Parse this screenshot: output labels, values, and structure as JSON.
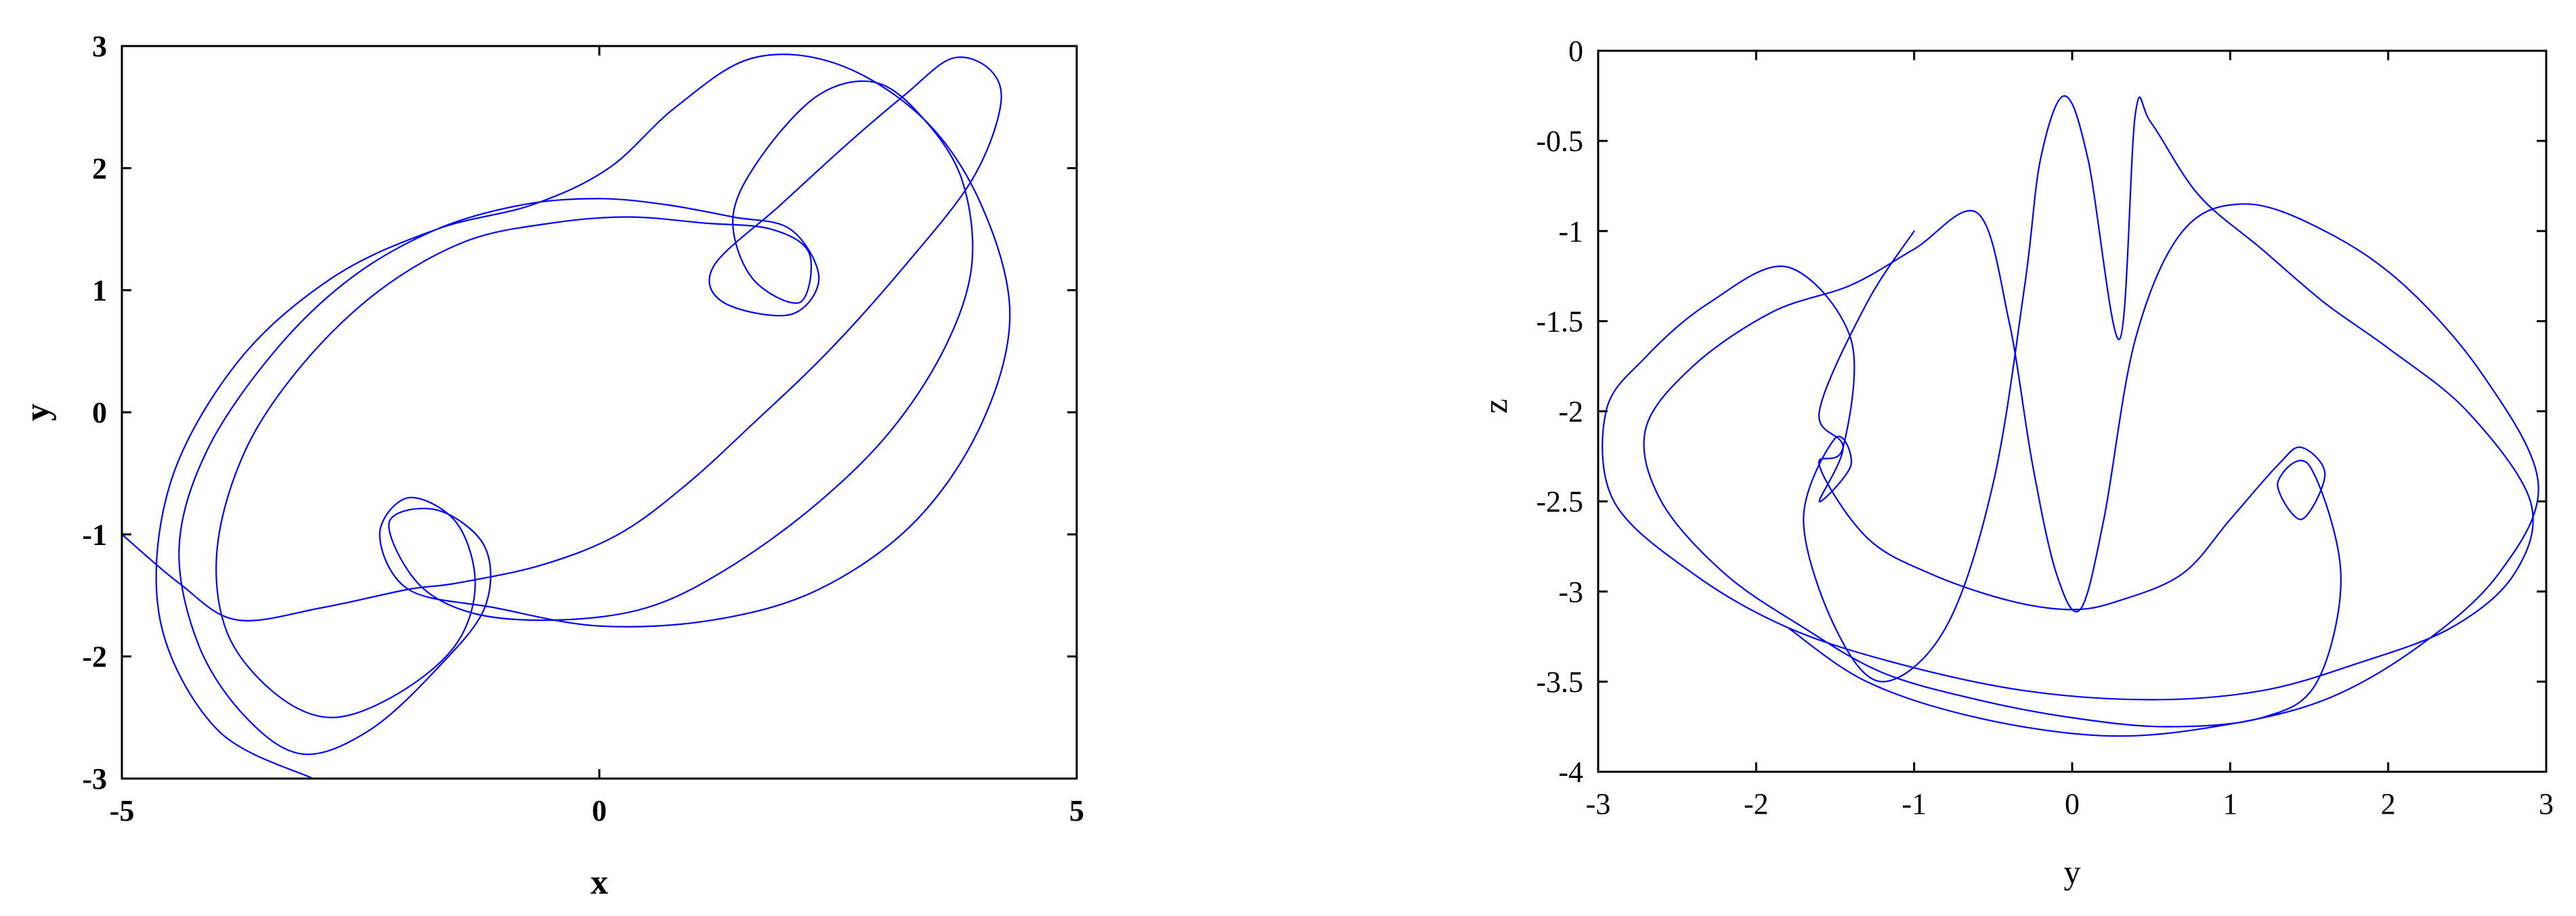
{
  "chart_data": [
    {
      "type": "line",
      "title": "",
      "xlabel": "x",
      "ylabel": "y",
      "xlim": [
        -5,
        5
      ],
      "ylim": [
        -3,
        3
      ],
      "x_ticks": [
        -5,
        0,
        5
      ],
      "y_ticks": [
        -3,
        -2,
        -1,
        0,
        1,
        2,
        3
      ],
      "grid": false,
      "legend": "none",
      "label_weight": "bold",
      "line_color": "#0000ff",
      "series": [
        {
          "x": [
            -5.0,
            -4.4,
            -3.8,
            -2.9,
            -2.0,
            -1.5,
            -0.6,
            0.2,
            0.9,
            1.6,
            2.4,
            3.2,
            3.9,
            4.2,
            4.1,
            3.7,
            3.2,
            2.6,
            1.9,
            1.2,
            1.3,
            2.0,
            2.3,
            2.0,
            1.4,
            0.7,
            0.0,
            -0.8,
            -1.7,
            -2.6,
            -3.4,
            -4.1,
            -4.4,
            -4.2,
            -3.7,
            -3.1,
            -2.4,
            -1.7,
            -1.2,
            -1.2,
            -1.7,
            -2.2,
            -1.9,
            -1.3,
            -0.4,
            0.5,
            1.3,
            2.2,
            3.0,
            3.6,
            3.9,
            3.8,
            3.4,
            2.9,
            2.3,
            1.7,
            1.4,
            1.6,
            2.1,
            2.2,
            1.8,
            1.1,
            0.3,
            -0.5,
            -1.4,
            -2.3,
            -3.1,
            -3.7,
            -4.0,
            -3.9,
            -3.4,
            -2.8,
            -2.1,
            -1.5,
            -1.3,
            -1.5,
            -2.0,
            -2.3,
            -2.0,
            -1.1,
            0.0,
            1.2,
            2.3,
            3.3,
            4.0,
            4.3,
            4.0,
            3.4,
            2.5,
            1.6,
            0.8,
            0.1,
            -0.7,
            -1.7,
            -2.8,
            -3.8,
            -4.5,
            -4.6,
            -4.0,
            -3.0
          ],
          "y": [
            -1.0,
            -1.4,
            -1.7,
            -1.6,
            -1.45,
            -1.4,
            -1.25,
            -1.0,
            -0.6,
            -0.1,
            0.5,
            1.2,
            1.9,
            2.5,
            2.8,
            2.9,
            2.6,
            2.2,
            1.7,
            1.2,
            0.9,
            0.8,
            1.1,
            1.5,
            1.6,
            1.7,
            1.75,
            1.7,
            1.5,
            1.1,
            0.5,
            -0.3,
            -1.1,
            -1.9,
            -2.5,
            -2.8,
            -2.6,
            -2.1,
            -1.6,
            -1.1,
            -0.8,
            -0.9,
            -1.4,
            -1.65,
            -1.7,
            -1.6,
            -1.3,
            -0.8,
            -0.2,
            0.5,
            1.2,
            1.9,
            2.4,
            2.7,
            2.6,
            2.1,
            1.6,
            1.1,
            0.9,
            1.3,
            1.5,
            1.55,
            1.6,
            1.55,
            1.4,
            1.0,
            0.4,
            -0.3,
            -1.1,
            -1.8,
            -2.3,
            -2.5,
            -2.3,
            -1.9,
            -1.4,
            -0.9,
            -0.7,
            -1.0,
            -1.45,
            -1.6,
            -1.75,
            -1.7,
            -1.45,
            -0.9,
            -0.1,
            0.8,
            1.7,
            2.4,
            2.85,
            2.9,
            2.5,
            2.0,
            1.7,
            1.5,
            1.1,
            0.4,
            -0.6,
            -1.7,
            -2.6,
            -3.0
          ]
        }
      ]
    },
    {
      "type": "line",
      "title": "",
      "xlabel": "y",
      "ylabel": "z",
      "xlim": [
        -3,
        3
      ],
      "ylim": [
        -4,
        0
      ],
      "x_ticks": [
        -3,
        -2,
        -1,
        0,
        1,
        2,
        3
      ],
      "y_ticks": [
        0,
        -0.5,
        -1,
        -1.5,
        -2,
        -2.5,
        -3,
        -3.5,
        -4
      ],
      "grid": false,
      "legend": "none",
      "label_weight": "normal",
      "line_color": "#0000ff",
      "series": [
        {
          "x": [
            -1.0,
            -1.3,
            -1.6,
            -1.45,
            -1.6,
            -1.4,
            -1.5,
            -1.7,
            -1.5,
            -1.2,
            -0.8,
            -0.5,
            -0.3,
            -0.2,
            -0.05,
            0.1,
            0.3,
            0.4,
            0.5,
            0.8,
            1.2,
            1.6,
            2.0,
            2.5,
            2.9,
            2.8,
            2.4,
            1.8,
            1.2,
            0.5,
            -0.3,
            -1.1,
            -1.8,
            -2.4,
            -2.9,
            -2.95,
            -2.7,
            -2.3,
            -1.8,
            -1.4,
            -1.45,
            -1.6,
            -1.3,
            -0.9,
            -0.4,
            0.0,
            0.3,
            0.7,
            1.0,
            1.3,
            1.45,
            1.6,
            1.45,
            1.3,
            1.5,
            1.7,
            1.55,
            1.2,
            0.6,
            0.0,
            -0.6,
            -1.2,
            -1.7,
            -2.2,
            -2.6,
            -2.7,
            -2.4,
            -1.9,
            -1.4,
            -1.0,
            -0.6,
            -0.4,
            -0.25,
            -0.1,
            0.05,
            0.2,
            0.4,
            0.7,
            1.1,
            1.6,
            2.1,
            2.6,
            2.95,
            2.7,
            2.2,
            1.6,
            0.9,
            0.2,
            -0.6,
            -1.3,
            -1.8
          ],
          "y": [
            -1.0,
            -1.4,
            -2.0,
            -2.2,
            -2.5,
            -2.3,
            -2.15,
            -2.6,
            -3.2,
            -3.5,
            -3.2,
            -2.4,
            -1.3,
            -0.6,
            -0.25,
            -0.6,
            -1.6,
            -0.35,
            -0.4,
            -0.8,
            -1.1,
            -1.4,
            -1.65,
            -2.0,
            -2.5,
            -2.9,
            -3.2,
            -3.4,
            -3.55,
            -3.6,
            -3.55,
            -3.4,
            -3.2,
            -2.9,
            -2.5,
            -2.0,
            -1.7,
            -1.4,
            -1.2,
            -1.6,
            -2.2,
            -2.3,
            -2.7,
            -2.9,
            -3.05,
            -3.1,
            -3.05,
            -2.9,
            -2.6,
            -2.3,
            -2.2,
            -2.35,
            -2.6,
            -2.4,
            -2.3,
            -2.9,
            -3.5,
            -3.7,
            -3.75,
            -3.7,
            -3.6,
            -3.45,
            -3.2,
            -2.9,
            -2.5,
            -2.1,
            -1.75,
            -1.45,
            -1.3,
            -1.1,
            -0.9,
            -1.5,
            -2.3,
            -2.9,
            -3.1,
            -2.6,
            -1.6,
            -1.0,
            -0.85,
            -1.0,
            -1.3,
            -1.8,
            -2.4,
            -2.9,
            -3.3,
            -3.6,
            -3.75,
            -3.8,
            -3.7,
            -3.5,
            -3.2
          ]
        }
      ]
    }
  ]
}
